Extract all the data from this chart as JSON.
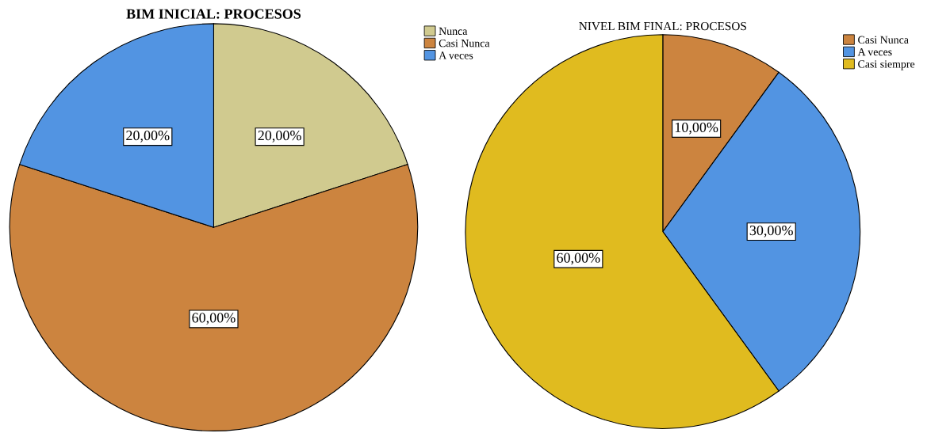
{
  "chart_data": [
    {
      "type": "pie",
      "title": "BIM INICIAL: PROCESOS",
      "categories": [
        "Nunca",
        "Casi Nunca",
        "A veces"
      ],
      "values": [
        20,
        60,
        20
      ],
      "colors": [
        "#d0ca8f",
        "#cc843f",
        "#5294e2"
      ],
      "value_labels": [
        "20,00%",
        "60,00%",
        "20,00%"
      ],
      "legend": "top right"
    },
    {
      "type": "pie",
      "title": "NIVEL BIM FINAL: PROCESOS",
      "categories": [
        "Casi Nunca",
        "A veces",
        "Casi siempre"
      ],
      "values": [
        10,
        30,
        60
      ],
      "colors": [
        "#cc843f",
        "#5294e2",
        "#e0bb1f"
      ],
      "value_labels": [
        "10,00%",
        "30,00%",
        "60,00%"
      ],
      "legend": "top right"
    }
  ]
}
